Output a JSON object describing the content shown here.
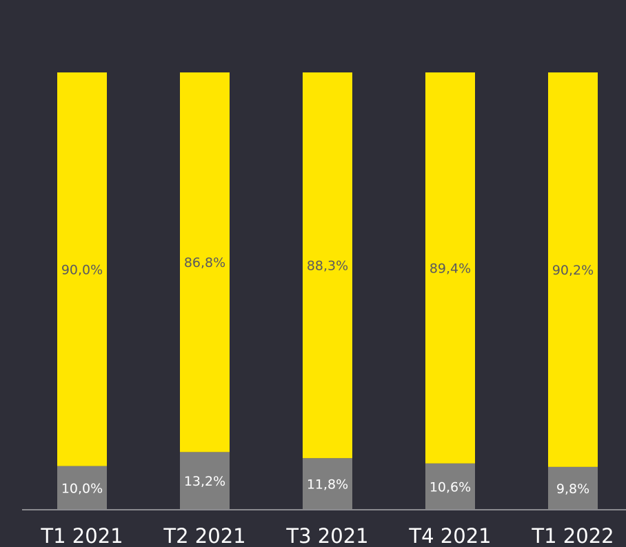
{
  "chart_data": {
    "type": "bar",
    "stacked": true,
    "percent": true,
    "categories": [
      "T1 2021",
      "T2 2021",
      "T3 2021",
      "T4 2021",
      "T1 2022"
    ],
    "series": [
      {
        "color": "#7f7f7f",
        "values": [
          10.0,
          13.2,
          11.8,
          10.6,
          9.8
        ],
        "labels": [
          "10,0%",
          "13,2%",
          "11,8%",
          "10,6%",
          "9,8%"
        ]
      },
      {
        "color": "#ffe600",
        "values": [
          90.0,
          86.8,
          88.3,
          89.4,
          90.2
        ],
        "labels": [
          "90,0%",
          "86,8%",
          "88,3%",
          "89,4%",
          "90,2%"
        ]
      }
    ],
    "ylim": [
      0,
      100
    ],
    "grid": false,
    "legend": "none"
  }
}
